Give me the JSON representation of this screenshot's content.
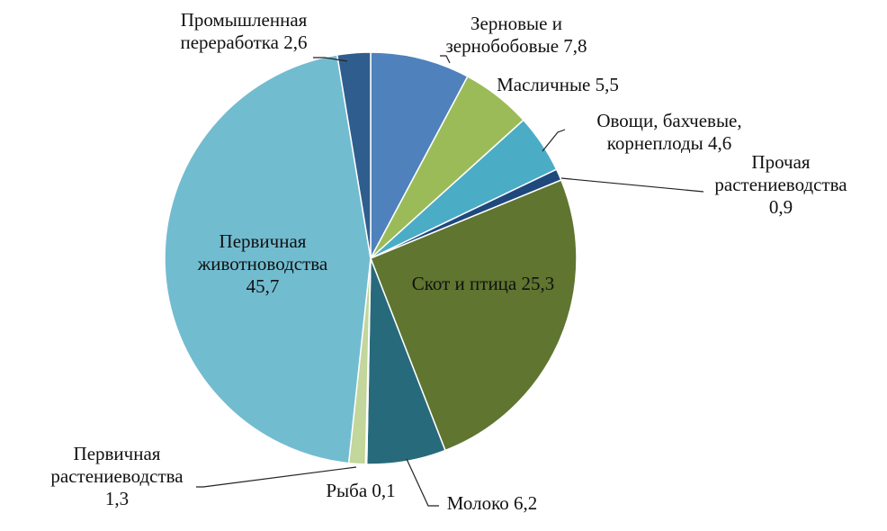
{
  "chart_data": {
    "type": "pie",
    "start_angle_deg": 0,
    "direction": "clockwise",
    "slices": [
      {
        "label_lines": [
          "Зерновые и",
          "зернобобовые 7,8"
        ],
        "value": 7.8,
        "color": "#4f81bd"
      },
      {
        "label_lines": [
          "Масличные 5,5"
        ],
        "value": 5.5,
        "color": "#9bbb59"
      },
      {
        "label_lines": [
          "Овощи, бахчевые,",
          "корнеплоды 4,6"
        ],
        "value": 4.6,
        "color": "#4bacc6"
      },
      {
        "label_lines": [
          "Прочая",
          "растениеводства",
          "0,9"
        ],
        "value": 0.9,
        "color": "#1f497d"
      },
      {
        "label_lines": [
          "Скот и птица 25,3"
        ],
        "value": 25.3,
        "color": "#5f7530"
      },
      {
        "label_lines": [
          "Молоко 6,2"
        ],
        "value": 6.2,
        "color": "#276a7c"
      },
      {
        "label_lines": [
          "Рыба 0,1"
        ],
        "value": 0.1,
        "color": "#3a4f7a"
      },
      {
        "label_lines": [
          "Первичная",
          "растениеводства",
          "1,3"
        ],
        "value": 1.3,
        "color": "#c3d69b"
      },
      {
        "label_lines": [
          "Первичная",
          "животноводства",
          "45,7"
        ],
        "value": 45.7,
        "color": "#72bcd0"
      },
      {
        "label_lines": [
          "Промышленная",
          "переработка 2,6"
        ],
        "value": 2.6,
        "color": "#2f5d8e"
      }
    ]
  }
}
